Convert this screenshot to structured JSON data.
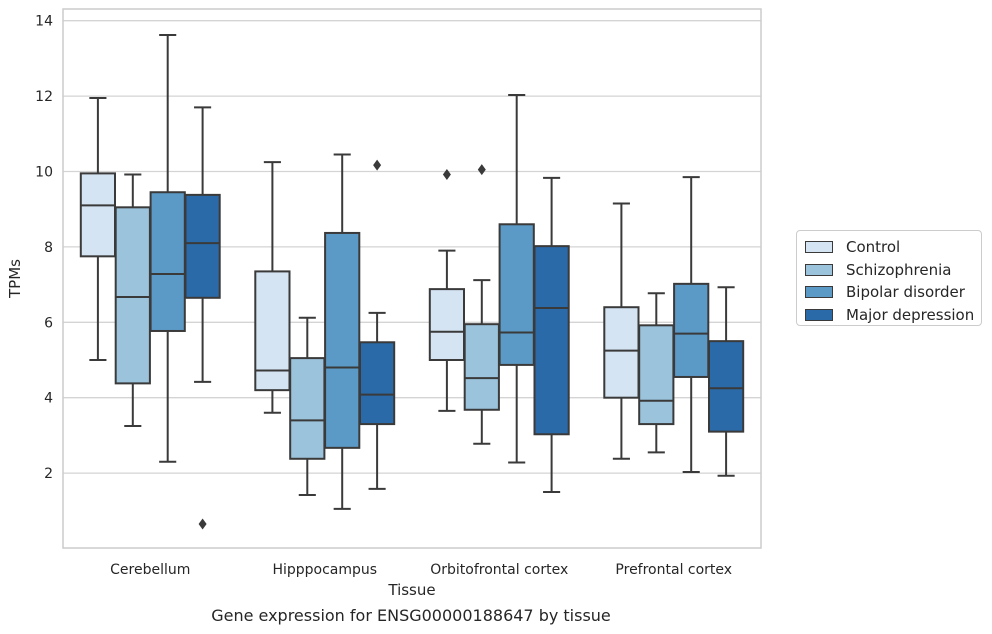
{
  "caption": "Gene expression for ENSG00000188647 by tissue",
  "chart_data": {
    "type": "box",
    "xlabel": "Tissue",
    "ylabel": "TPMs",
    "ylim": [
      0,
      14.3
    ],
    "yticks": [
      2,
      4,
      6,
      8,
      10,
      12,
      14
    ],
    "grid": "horizontal",
    "legend_position": "right",
    "categories": [
      "Cerebellum",
      "Hipppocampus",
      "Orbitofrontal cortex",
      "Prefrontal cortex"
    ],
    "series": [
      {
        "name": "Control",
        "color": "#d5e4f2",
        "boxes": [
          {
            "whislo": 5.0,
            "q1": 7.75,
            "med": 9.1,
            "q3": 9.95,
            "whishi": 11.95,
            "fliers": []
          },
          {
            "whislo": 3.6,
            "q1": 4.2,
            "med": 4.72,
            "q3": 7.35,
            "whishi": 10.25,
            "fliers": []
          },
          {
            "whislo": 3.65,
            "q1": 5.0,
            "med": 5.75,
            "q3": 6.88,
            "whishi": 7.9,
            "fliers": [
              9.92
            ]
          },
          {
            "whislo": 2.38,
            "q1": 4.0,
            "med": 5.25,
            "q3": 6.4,
            "whishi": 9.15,
            "fliers": []
          }
        ]
      },
      {
        "name": "Schizophrenia",
        "color": "#9bc3dc",
        "boxes": [
          {
            "whislo": 3.25,
            "q1": 4.38,
            "med": 6.67,
            "q3": 9.05,
            "whishi": 9.92,
            "fliers": []
          },
          {
            "whislo": 1.42,
            "q1": 2.38,
            "med": 3.4,
            "q3": 5.05,
            "whishi": 6.12,
            "fliers": []
          },
          {
            "whislo": 2.78,
            "q1": 3.68,
            "med": 4.52,
            "q3": 5.95,
            "whishi": 7.12,
            "fliers": [
              10.05
            ]
          },
          {
            "whislo": 2.55,
            "q1": 3.3,
            "med": 3.92,
            "q3": 5.92,
            "whishi": 6.77,
            "fliers": []
          }
        ]
      },
      {
        "name": "Bipolar disorder",
        "color": "#5b9ac6",
        "boxes": [
          {
            "whislo": 2.3,
            "q1": 5.77,
            "med": 7.28,
            "q3": 9.45,
            "whishi": 13.62,
            "fliers": []
          },
          {
            "whislo": 1.05,
            "q1": 2.67,
            "med": 4.8,
            "q3": 8.37,
            "whishi": 10.45,
            "fliers": []
          },
          {
            "whislo": 2.28,
            "q1": 4.87,
            "med": 5.73,
            "q3": 8.6,
            "whishi": 12.03,
            "fliers": []
          },
          {
            "whislo": 2.03,
            "q1": 4.55,
            "med": 5.7,
            "q3": 7.02,
            "whishi": 9.85,
            "fliers": []
          }
        ]
      },
      {
        "name": "Major depression",
        "color": "#2b6aa8",
        "boxes": [
          {
            "whislo": 4.42,
            "q1": 6.65,
            "med": 8.1,
            "q3": 9.38,
            "whishi": 11.7,
            "fliers": [
              0.65
            ]
          },
          {
            "whislo": 1.58,
            "q1": 3.3,
            "med": 4.08,
            "q3": 5.47,
            "whishi": 6.25,
            "fliers": [
              10.17
            ]
          },
          {
            "whislo": 1.5,
            "q1": 3.03,
            "med": 6.38,
            "q3": 8.02,
            "whishi": 9.83,
            "fliers": []
          },
          {
            "whislo": 1.93,
            "q1": 3.1,
            "med": 4.25,
            "q3": 5.5,
            "whishi": 6.93,
            "fliers": []
          }
        ]
      }
    ]
  }
}
